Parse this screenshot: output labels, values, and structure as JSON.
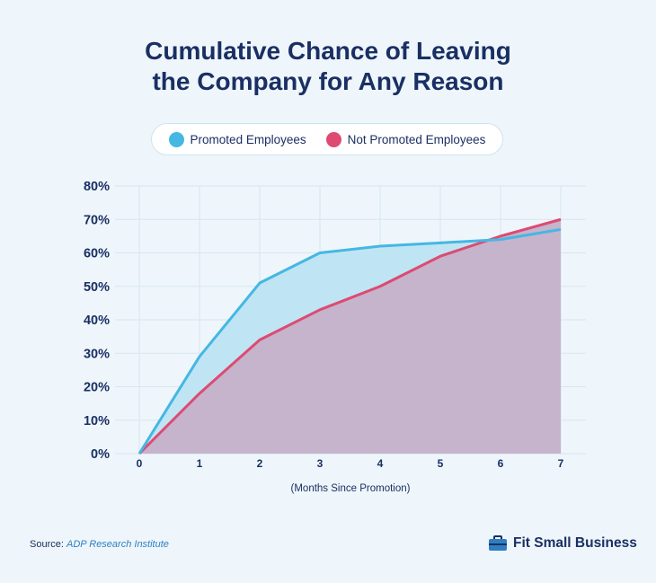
{
  "header": {
    "title_line1": "Cumulative Chance of Leaving",
    "title_line2": "the Company for Any Reason"
  },
  "legend": {
    "items": [
      {
        "label": "Promoted Employees",
        "color": "#45b7e3"
      },
      {
        "label": "Not Promoted Employees",
        "color": "#dd4b72"
      }
    ]
  },
  "chart_data": {
    "type": "area",
    "title": "Cumulative Chance of Leaving the Company for Any Reason",
    "xlabel": "(Months Since Promotion)",
    "ylabel": "",
    "x": [
      0,
      1,
      2,
      3,
      4,
      5,
      6,
      7
    ],
    "ylim": [
      0,
      80
    ],
    "yticks": [
      "0%",
      "10%",
      "20%",
      "30%",
      "40%",
      "50%",
      "60%",
      "70%",
      "80%"
    ],
    "grid": true,
    "legend_position": "top-center",
    "series": [
      {
        "name": "Promoted Employees",
        "color": "#45b7e3",
        "values": [
          0,
          29,
          51,
          60,
          62,
          63,
          64,
          67
        ]
      },
      {
        "name": "Not Promoted Employees",
        "color": "#dd4b72",
        "values": [
          0,
          18,
          34,
          43,
          50,
          59,
          65,
          70
        ]
      }
    ]
  },
  "footer": {
    "source_label": "Source:",
    "source_value": "ADP Research Institute",
    "brand": "Fit Small Business",
    "brand_icon": "briefcase-icon"
  }
}
